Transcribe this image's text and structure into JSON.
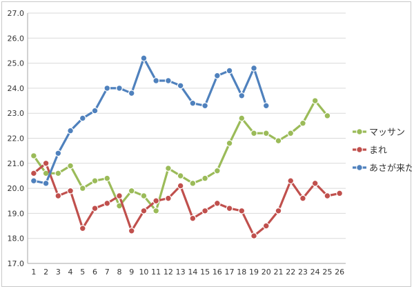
{
  "chart_data": {
    "type": "line",
    "title": "",
    "xlabel": "",
    "ylabel": "",
    "categories": [
      "1",
      "2",
      "3",
      "4",
      "5",
      "6",
      "7",
      "8",
      "9",
      "10",
      "11",
      "12",
      "13",
      "14",
      "15",
      "16",
      "17",
      "18",
      "19",
      "20",
      "21",
      "22",
      "23",
      "24",
      "25",
      "26"
    ],
    "y_ticks": [
      "17.0",
      "18.0",
      "19.0",
      "20.0",
      "21.0",
      "22.0",
      "23.0",
      "24.0",
      "25.0",
      "26.0",
      "27.0"
    ],
    "ylim": [
      17,
      27
    ],
    "grid": "horizontal",
    "legend_position": "right",
    "series": [
      {
        "name": "マッサン",
        "color": "#9bbb59",
        "values": [
          21.3,
          20.6,
          20.6,
          20.9,
          20.0,
          20.3,
          20.4,
          19.3,
          19.9,
          19.7,
          19.1,
          20.8,
          20.5,
          20.2,
          20.4,
          20.7,
          21.8,
          22.8,
          22.2,
          22.2,
          21.9,
          22.2,
          22.6,
          23.5,
          22.9,
          null
        ]
      },
      {
        "name": "まれ",
        "color": "#c0504d",
        "values": [
          20.6,
          21.0,
          19.7,
          19.9,
          18.4,
          19.2,
          19.4,
          19.7,
          18.3,
          19.1,
          19.5,
          19.6,
          20.1,
          18.8,
          19.1,
          19.4,
          19.2,
          19.1,
          18.1,
          18.5,
          19.1,
          20.3,
          19.6,
          20.2,
          19.7,
          19.8
        ]
      },
      {
        "name": "あさが来た",
        "color": "#4f81bd",
        "values": [
          20.3,
          20.2,
          21.4,
          22.3,
          22.8,
          23.1,
          24.0,
          24.0,
          23.8,
          25.2,
          24.3,
          24.3,
          24.1,
          23.4,
          23.3,
          24.5,
          24.7,
          23.7,
          24.8,
          23.3,
          null,
          null,
          null,
          null,
          null,
          null
        ]
      }
    ]
  }
}
